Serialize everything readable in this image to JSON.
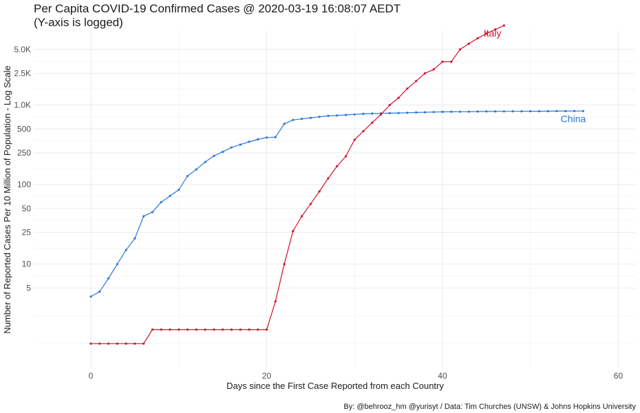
{
  "chart_data": {
    "type": "line",
    "title": "Per Capita COVID-19 Confirmed Cases @ 2020-03-19 16:08:07 AEDT",
    "subtitle": "(Y-axis is logged)",
    "xlabel": "Days since the First Case Reported from each Country",
    "ylabel": "Number of Reported Cases Per 10 Million of Population - Log Scale",
    "caption": "By: @behrooz_hm @yurisyt / Data: Tim Churches (UNSW) & Johns Hopkins University",
    "xlim": [
      -6.5,
      62
    ],
    "ylim": [
      0.5,
      8700
    ],
    "y_scale": "log",
    "grid": true,
    "legend": "none",
    "x_ticks": [
      0,
      20,
      40,
      60
    ],
    "x_tick_labels": [
      "0",
      "20",
      "40",
      "60"
    ],
    "y_ticks": [
      5,
      10,
      25,
      50,
      100,
      250,
      500,
      1000,
      2500,
      5000
    ],
    "y_tick_labels": [
      "5",
      "10",
      "25",
      "50",
      "100",
      "250",
      "500",
      "1.0K",
      "2.5K",
      "5.0K"
    ],
    "series": [
      {
        "name": "China",
        "color": "#2878d8",
        "label_position": "right-end",
        "x": [
          0,
          1,
          2,
          3,
          4,
          5,
          6,
          7,
          8,
          9,
          10,
          11,
          12,
          13,
          14,
          15,
          16,
          17,
          18,
          19,
          20,
          21,
          22,
          23,
          24,
          25,
          26,
          27,
          28,
          29,
          30,
          31,
          32,
          33,
          34,
          35,
          36,
          37,
          38,
          39,
          40,
          41,
          42,
          43,
          44,
          45,
          46,
          47,
          48,
          49,
          50,
          51,
          52,
          53,
          54,
          55,
          56
        ],
        "values": [
          3.9,
          4.5,
          6.6,
          10,
          15,
          21,
          40,
          45,
          60,
          72,
          86,
          128,
          155,
          192,
          229,
          258,
          293,
          318,
          345,
          370,
          390,
          395,
          580,
          650,
          670,
          690,
          710,
          730,
          740,
          750,
          760,
          775,
          780,
          785,
          790,
          795,
          800,
          805,
          810,
          815,
          820,
          822,
          824,
          826,
          828,
          830,
          831,
          832,
          833,
          834,
          835,
          836,
          837,
          838,
          839,
          840,
          841
        ]
      },
      {
        "name": "Italy",
        "color": "#d0112b",
        "label_position": "near-end",
        "x": [
          0,
          1,
          2,
          3,
          4,
          5,
          6,
          7,
          8,
          9,
          10,
          11,
          12,
          13,
          14,
          15,
          16,
          17,
          18,
          19,
          20,
          21,
          22,
          23,
          24,
          25,
          26,
          27,
          28,
          29,
          30,
          31,
          32,
          33,
          34,
          35,
          36,
          37,
          38,
          39,
          40,
          41,
          42,
          43,
          44,
          45,
          46,
          47
        ],
        "values": [
          1.0,
          1.0,
          1.0,
          1.0,
          1.0,
          1.0,
          1.0,
          1.5,
          1.5,
          1.5,
          1.5,
          1.5,
          1.5,
          1.5,
          1.5,
          1.5,
          1.5,
          1.5,
          1.5,
          1.5,
          1.5,
          3.4,
          10,
          26,
          40,
          57,
          82,
          120,
          170,
          227,
          365,
          470,
          600,
          760,
          1000,
          1230,
          1610,
          2000,
          2500,
          2800,
          3500,
          3500,
          5000,
          5900,
          6900,
          7900,
          8900,
          10000
        ]
      }
    ]
  }
}
